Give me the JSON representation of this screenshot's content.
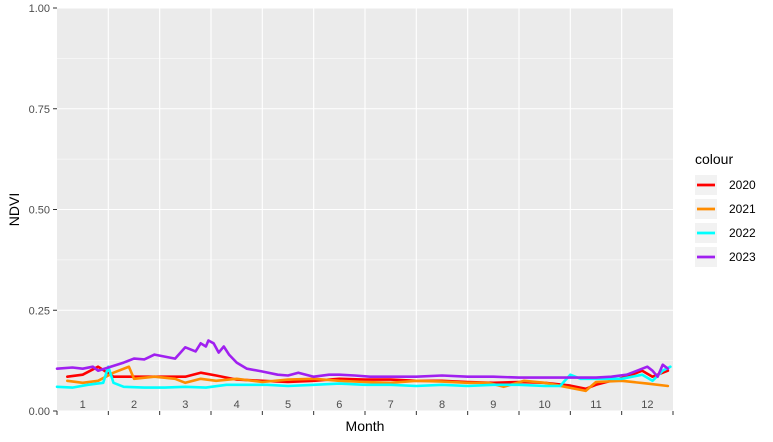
{
  "chart_data": {
    "type": "line",
    "xlabel": "Month",
    "ylabel": "NDVI",
    "x_categories": [
      "1",
      "2",
      "3",
      "4",
      "5",
      "6",
      "7",
      "8",
      "9",
      "10",
      "11",
      "12"
    ],
    "xlim": [
      0.5,
      12.5
    ],
    "ylim": [
      0,
      1
    ],
    "y_ticks": [
      "0.00",
      "0.25",
      "0.50",
      "0.75",
      "1.00"
    ],
    "grid": true,
    "background": "#ebebeb",
    "legend": {
      "title": "colour",
      "position": "right"
    },
    "series": [
      {
        "name": "2020",
        "color": "#ff0000",
        "points": [
          [
            0.7,
            0.085
          ],
          [
            1.0,
            0.09
          ],
          [
            1.3,
            0.11
          ],
          [
            1.6,
            0.085
          ],
          [
            2.0,
            0.085
          ],
          [
            2.5,
            0.085
          ],
          [
            3.0,
            0.085
          ],
          [
            3.3,
            0.095
          ],
          [
            3.6,
            0.088
          ],
          [
            4.0,
            0.078
          ],
          [
            4.5,
            0.075
          ],
          [
            5.0,
            0.072
          ],
          [
            5.5,
            0.075
          ],
          [
            6.0,
            0.08
          ],
          [
            6.5,
            0.078
          ],
          [
            7.0,
            0.078
          ],
          [
            7.5,
            0.075
          ],
          [
            8.0,
            0.075
          ],
          [
            8.5,
            0.072
          ],
          [
            9.0,
            0.07
          ],
          [
            9.5,
            0.072
          ],
          [
            10.0,
            0.07
          ],
          [
            10.5,
            0.063
          ],
          [
            10.8,
            0.055
          ],
          [
            11.0,
            0.065
          ],
          [
            11.3,
            0.075
          ],
          [
            11.6,
            0.085
          ],
          [
            11.9,
            0.1
          ],
          [
            12.1,
            0.085
          ],
          [
            12.4,
            0.1
          ]
        ]
      },
      {
        "name": "2021",
        "color": "#ff8c00",
        "points": [
          [
            0.7,
            0.075
          ],
          [
            1.0,
            0.07
          ],
          [
            1.3,
            0.075
          ],
          [
            1.6,
            0.095
          ],
          [
            1.9,
            0.11
          ],
          [
            2.0,
            0.08
          ],
          [
            2.4,
            0.085
          ],
          [
            2.8,
            0.08
          ],
          [
            3.0,
            0.07
          ],
          [
            3.3,
            0.08
          ],
          [
            3.6,
            0.075
          ],
          [
            4.0,
            0.08
          ],
          [
            4.5,
            0.072
          ],
          [
            5.0,
            0.078
          ],
          [
            5.5,
            0.08
          ],
          [
            6.0,
            0.075
          ],
          [
            6.5,
            0.072
          ],
          [
            7.0,
            0.07
          ],
          [
            7.5,
            0.075
          ],
          [
            8.0,
            0.073
          ],
          [
            8.5,
            0.07
          ],
          [
            8.9,
            0.07
          ],
          [
            9.2,
            0.06
          ],
          [
            9.6,
            0.075
          ],
          [
            10.0,
            0.07
          ],
          [
            10.4,
            0.06
          ],
          [
            10.8,
            0.05
          ],
          [
            11.0,
            0.072
          ],
          [
            11.5,
            0.075
          ],
          [
            12.0,
            0.068
          ],
          [
            12.4,
            0.062
          ]
        ]
      },
      {
        "name": "2022",
        "color": "#00ffff",
        "points": [
          [
            0.5,
            0.06
          ],
          [
            0.8,
            0.058
          ],
          [
            1.1,
            0.065
          ],
          [
            1.4,
            0.07
          ],
          [
            1.5,
            0.11
          ],
          [
            1.6,
            0.07
          ],
          [
            1.8,
            0.06
          ],
          [
            2.2,
            0.058
          ],
          [
            2.6,
            0.058
          ],
          [
            3.0,
            0.06
          ],
          [
            3.4,
            0.058
          ],
          [
            3.8,
            0.065
          ],
          [
            4.2,
            0.065
          ],
          [
            4.6,
            0.065
          ],
          [
            5.0,
            0.062
          ],
          [
            5.5,
            0.065
          ],
          [
            6.0,
            0.068
          ],
          [
            6.5,
            0.065
          ],
          [
            7.0,
            0.065
          ],
          [
            7.5,
            0.062
          ],
          [
            8.0,
            0.065
          ],
          [
            8.5,
            0.062
          ],
          [
            9.0,
            0.065
          ],
          [
            9.5,
            0.065
          ],
          [
            10.0,
            0.062
          ],
          [
            10.3,
            0.062
          ],
          [
            10.5,
            0.09
          ],
          [
            10.7,
            0.08
          ],
          [
            11.0,
            0.08
          ],
          [
            11.5,
            0.08
          ],
          [
            11.9,
            0.09
          ],
          [
            12.1,
            0.075
          ],
          [
            12.3,
            0.1
          ],
          [
            12.45,
            0.11
          ]
        ]
      },
      {
        "name": "2023",
        "color": "#a020f0",
        "points": [
          [
            0.5,
            0.105
          ],
          [
            0.8,
            0.108
          ],
          [
            1.0,
            0.105
          ],
          [
            1.2,
            0.11
          ],
          [
            1.3,
            0.1
          ],
          [
            1.5,
            0.108
          ],
          [
            1.8,
            0.12
          ],
          [
            2.0,
            0.13
          ],
          [
            2.2,
            0.128
          ],
          [
            2.4,
            0.14
          ],
          [
            2.6,
            0.135
          ],
          [
            2.8,
            0.13
          ],
          [
            3.0,
            0.158
          ],
          [
            3.2,
            0.148
          ],
          [
            3.3,
            0.168
          ],
          [
            3.4,
            0.16
          ],
          [
            3.45,
            0.175
          ],
          [
            3.55,
            0.168
          ],
          [
            3.65,
            0.145
          ],
          [
            3.75,
            0.16
          ],
          [
            3.85,
            0.14
          ],
          [
            4.0,
            0.12
          ],
          [
            4.2,
            0.105
          ],
          [
            4.5,
            0.098
          ],
          [
            4.8,
            0.09
          ],
          [
            5.0,
            0.088
          ],
          [
            5.2,
            0.095
          ],
          [
            5.5,
            0.085
          ],
          [
            5.8,
            0.09
          ],
          [
            6.0,
            0.09
          ],
          [
            6.3,
            0.088
          ],
          [
            6.6,
            0.085
          ],
          [
            7.0,
            0.085
          ],
          [
            7.5,
            0.085
          ],
          [
            8.0,
            0.088
          ],
          [
            8.5,
            0.085
          ],
          [
            9.0,
            0.085
          ],
          [
            9.5,
            0.083
          ],
          [
            10.0,
            0.083
          ],
          [
            10.5,
            0.083
          ],
          [
            11.0,
            0.083
          ],
          [
            11.3,
            0.085
          ],
          [
            11.6,
            0.09
          ],
          [
            11.8,
            0.1
          ],
          [
            12.0,
            0.11
          ],
          [
            12.1,
            0.1
          ],
          [
            12.2,
            0.085
          ],
          [
            12.3,
            0.115
          ],
          [
            12.4,
            0.105
          ]
        ]
      }
    ]
  }
}
